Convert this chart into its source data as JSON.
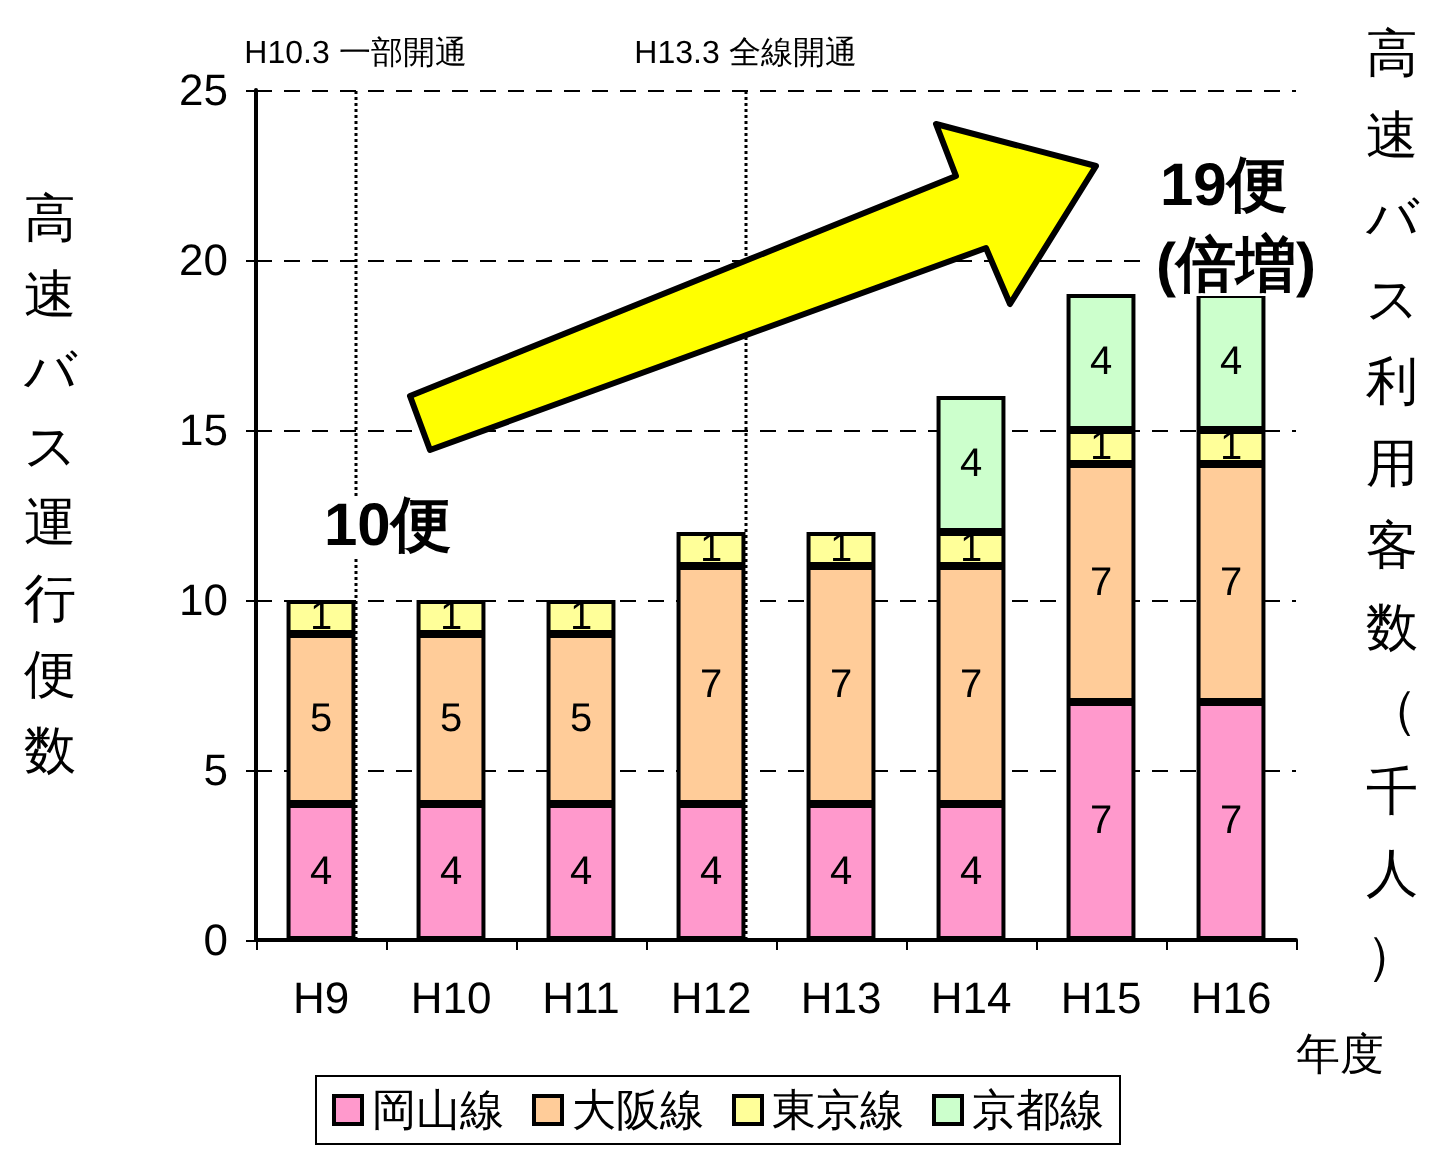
{
  "chart_data": {
    "type": "bar",
    "stacked": true,
    "categories": [
      "H9",
      "H10",
      "H11",
      "H12",
      "H13",
      "H14",
      "H15",
      "H16"
    ],
    "series": [
      {
        "name": "岡山線",
        "color": "#ff99cc",
        "values": [
          4,
          4,
          4,
          4,
          4,
          4,
          7,
          7
        ]
      },
      {
        "name": "大阪線",
        "color": "#ffcc99",
        "values": [
          5,
          5,
          5,
          7,
          7,
          7,
          7,
          7
        ]
      },
      {
        "name": "東京線",
        "color": "#ffff99",
        "values": [
          1,
          1,
          1,
          1,
          1,
          1,
          1,
          1
        ]
      },
      {
        "name": "京都線",
        "color": "#ccffcc",
        "values": [
          null,
          null,
          null,
          null,
          null,
          4,
          4,
          4
        ]
      }
    ],
    "ylim": [
      0,
      25
    ],
    "yticks": [
      0,
      5,
      10,
      15,
      20,
      25
    ],
    "ylabel": "高速バス運行便数",
    "y2label": "高速バス利用客数（千人）",
    "xlabel": "年度",
    "data_labels": true,
    "grid": "y",
    "legend": "bottom",
    "ref_lines": [
      {
        "axis": "x",
        "value": "H9",
        "label": "H10.3 一部開通",
        "line_style": "dotted"
      },
      {
        "axis": "x",
        "value": "H12",
        "label": "H13.3 全線開通",
        "line_style": "dotted"
      }
    ],
    "annotations": [
      "10便",
      "19便",
      "(倍増)"
    ]
  }
}
